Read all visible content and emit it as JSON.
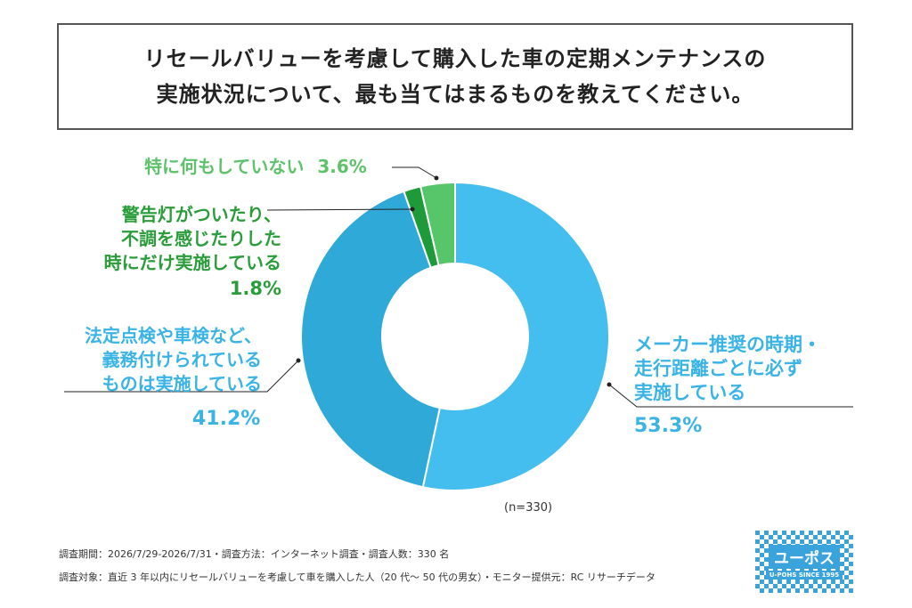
{
  "title": {
    "line1": "リセールバリューを考慮して購入した車の定期メンテナンスの",
    "line2": "実施状況について、最も当てはまるものを教えてください。"
  },
  "chart_data": {
    "type": "pie",
    "donut": true,
    "sample_note": "(n=330)",
    "slices": [
      {
        "label_lines": [
          "メーカー推奨の時期・",
          "走行距離ごとに必ず",
          "実施している"
        ],
        "pct_label": "53.3%",
        "value": 53.3,
        "color": "#44bdef",
        "text_color": "#3ab3e6"
      },
      {
        "label_lines": [
          "法定点検や車検など、",
          "義務付けられている",
          "ものは実施している"
        ],
        "pct_label": "41.2%",
        "value": 41.2,
        "color": "#2fa9d8",
        "text_color": "#3ab3e6"
      },
      {
        "label_lines": [
          "警告灯がついたり、",
          "不調を感じたりした",
          "時にだけ実施している"
        ],
        "pct_label": "1.8%",
        "value": 1.8,
        "color": "#1e9a3a",
        "text_color": "#2a9d3a"
      },
      {
        "label_lines": [
          "特に何もしていない"
        ],
        "pct_label": "3.6%",
        "value": 3.6,
        "color": "#57c56a",
        "text_color": "#5ec26b"
      }
    ]
  },
  "footer": {
    "line1": "調査期間：2026/7/29-2026/7/31・調査方法：インターネット調査・調査人数：330 名",
    "line2": "調査対象：直近 3 年以内にリセールバリューを考慮して車を購入した人（20 代〜 50 代の男女）・モニター提供元：RC リサーチデータ"
  },
  "logo": {
    "name": "ユーポス",
    "tagline": "U-POHS SINCE 1995"
  }
}
